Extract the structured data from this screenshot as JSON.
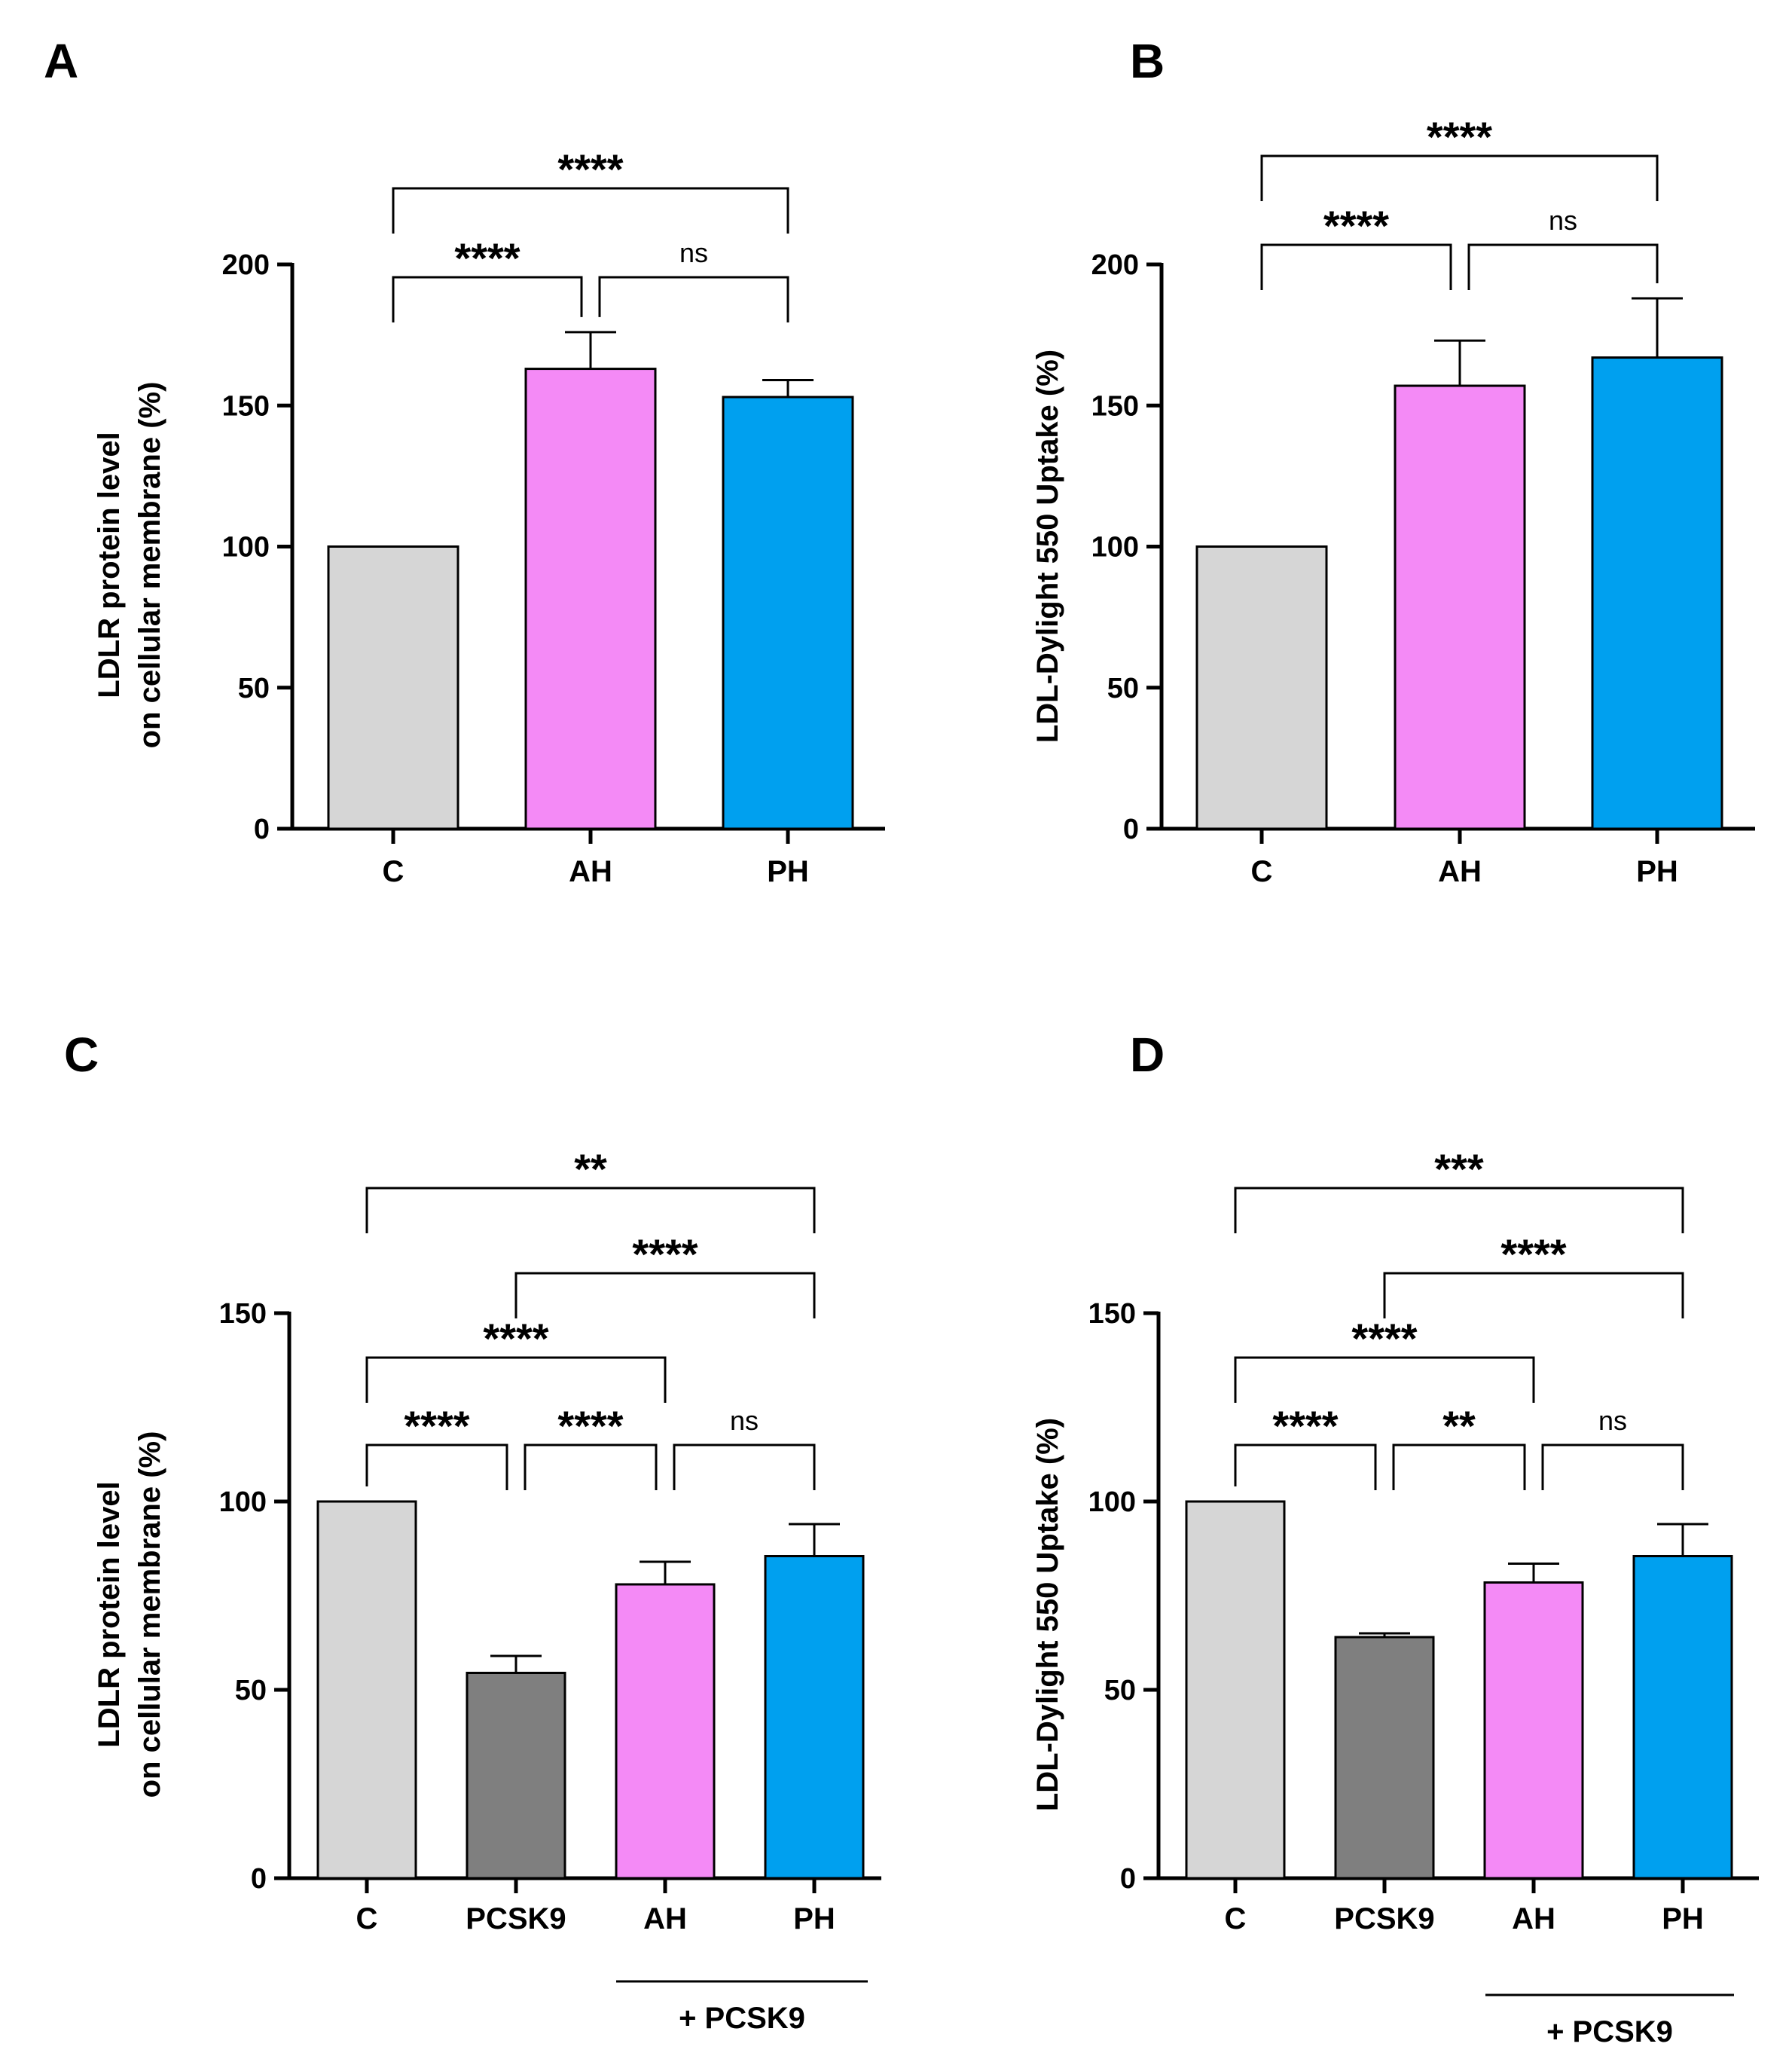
{
  "colors": {
    "C": "#d6d6d6",
    "PCSK9": "#7f7f7f",
    "AH": "#f48af6",
    "PH": "#00a0ef",
    "axis": "#000000"
  },
  "chart_data": [
    {
      "panel": "A",
      "type": "bar",
      "categories": [
        "C",
        "AH",
        "PH"
      ],
      "values": [
        100,
        163,
        153
      ],
      "errors": [
        0,
        13,
        6
      ],
      "ylabel_lines": [
        "LDLR protein level",
        "on cellular membrane  (%)"
      ],
      "ylim": [
        0,
        200
      ],
      "yticks": [
        "0",
        "50",
        "100",
        "150",
        "200"
      ],
      "group_label": "",
      "comparisons": [
        {
          "from": 0,
          "to": 2,
          "label": "****"
        },
        {
          "from": 0,
          "to": 1,
          "label": "****"
        },
        {
          "from": 1,
          "to": 2,
          "label": "ns"
        }
      ]
    },
    {
      "panel": "B",
      "type": "bar",
      "categories": [
        "C",
        "AH",
        "PH"
      ],
      "values": [
        100,
        157,
        167
      ],
      "errors": [
        0,
        16,
        21
      ],
      "ylabel_lines": [
        "LDL-Dylight 550 Uptake (%)"
      ],
      "ylim": [
        0,
        200
      ],
      "yticks": [
        "0",
        "50",
        "100",
        "150",
        "200"
      ],
      "group_label": "",
      "comparisons": [
        {
          "from": 0,
          "to": 2,
          "label": "****"
        },
        {
          "from": 0,
          "to": 1,
          "label": "****"
        },
        {
          "from": 1,
          "to": 2,
          "label": "ns"
        }
      ]
    },
    {
      "panel": "C",
      "type": "bar",
      "categories": [
        "C",
        "PCSK9",
        "AH",
        "PH"
      ],
      "values": [
        100,
        54.5,
        78,
        85.5
      ],
      "errors": [
        0,
        4.5,
        6,
        8.5
      ],
      "ylabel_lines": [
        "LDLR protein level",
        "on cellular membrane  (%)"
      ],
      "ylim": [
        0,
        150
      ],
      "yticks": [
        "0",
        "50",
        "100",
        "150"
      ],
      "group_label": "+ PCSK9",
      "comparisons": [
        {
          "from": 0,
          "to": 3,
          "label": "**"
        },
        {
          "from": 1,
          "to": 3,
          "label": "****"
        },
        {
          "from": 0,
          "to": 2,
          "label": "****"
        },
        {
          "from": 0,
          "to": 1,
          "label": "****"
        },
        {
          "from": 1,
          "to": 2,
          "label": "****"
        },
        {
          "from": 2,
          "to": 3,
          "label": "ns"
        }
      ]
    },
    {
      "panel": "D",
      "type": "bar",
      "categories": [
        "C",
        "PCSK9",
        "AH",
        "PH"
      ],
      "values": [
        100,
        64,
        78.5,
        85.5
      ],
      "errors": [
        0,
        1,
        5,
        8.5
      ],
      "ylabel_lines": [
        "LDL-Dylight 550 Uptake (%)"
      ],
      "ylim": [
        0,
        150
      ],
      "yticks": [
        "0",
        "50",
        "100",
        "150"
      ],
      "group_label": "+ PCSK9",
      "comparisons": [
        {
          "from": 0,
          "to": 3,
          "label": "***"
        },
        {
          "from": 1,
          "to": 3,
          "label": "****"
        },
        {
          "from": 0,
          "to": 2,
          "label": "****"
        },
        {
          "from": 0,
          "to": 1,
          "label": "****"
        },
        {
          "from": 1,
          "to": 2,
          "label": "**"
        },
        {
          "from": 2,
          "to": 3,
          "label": "ns"
        }
      ]
    }
  ]
}
